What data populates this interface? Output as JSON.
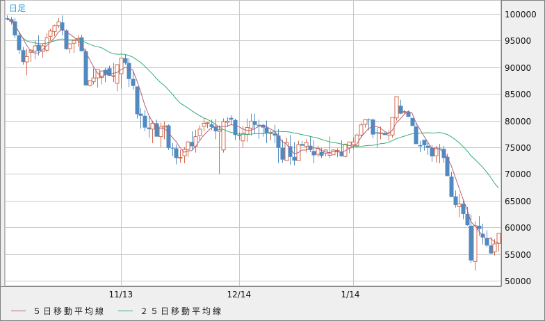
{
  "header": {
    "period_label": "日足"
  },
  "legend": {
    "items": [
      {
        "label": "５日移動平均線",
        "color": "#b0607f"
      },
      {
        "label": "２５日移動平均線",
        "color": "#2fae73"
      }
    ]
  },
  "colors": {
    "up": "#d06a4c",
    "down": "#4f8ac0",
    "grid": "#c8c8c8",
    "axis_bg": "#efefef",
    "title": "#2aa6d6"
  },
  "chart_data": {
    "type": "candlestick",
    "title": "日足",
    "xlabel": "",
    "ylabel": "",
    "ylim": [
      50000,
      100000
    ],
    "y_ticks": [
      100000,
      95000,
      90000,
      85000,
      80000,
      75000,
      70000,
      65000,
      60000,
      55000,
      50000
    ],
    "x_ticks": [
      {
        "label": "11/13",
        "index": 29
      },
      {
        "label": "12/14",
        "index": 59
      },
      {
        "label": "1/14",
        "index": 88
      }
    ],
    "grid": true,
    "legend_position": "bottom",
    "series_ma": [
      {
        "name": "５日移動平均線",
        "period": 5
      },
      {
        "name": "２５日移動平均線",
        "period": 25
      }
    ],
    "candles": [
      [
        99200,
        99700,
        98800,
        99000
      ],
      [
        99000,
        99400,
        98000,
        98500
      ],
      [
        98600,
        99200,
        95500,
        96000
      ],
      [
        96000,
        96600,
        92500,
        93200
      ],
      [
        93200,
        93800,
        90500,
        91000
      ],
      [
        91000,
        93500,
        88500,
        92000
      ],
      [
        92800,
        93400,
        91000,
        93200
      ],
      [
        93000,
        95000,
        91500,
        94000
      ],
      [
        94200,
        96000,
        92200,
        93100
      ],
      [
        93000,
        94500,
        91800,
        94000
      ],
      [
        93200,
        96400,
        92800,
        95500
      ],
      [
        95800,
        97200,
        95000,
        96800
      ],
      [
        96700,
        98000,
        95800,
        97800
      ],
      [
        97800,
        99200,
        97400,
        98500
      ],
      [
        98400,
        99700,
        96000,
        96900
      ],
      [
        96900,
        97100,
        93300,
        93400
      ],
      [
        93500,
        94500,
        92600,
        94400
      ],
      [
        94500,
        95200,
        92700,
        95000
      ],
      [
        95200,
        96000,
        93900,
        95400
      ],
      [
        95600,
        96100,
        93200,
        93000
      ],
      [
        93000,
        93500,
        86700,
        86600
      ],
      [
        86600,
        87600,
        86400,
        87500
      ],
      [
        87300,
        89800,
        86800,
        88000
      ],
      [
        88000,
        88600,
        86200,
        89600
      ],
      [
        88100,
        89400,
        86800,
        89300
      ],
      [
        89500,
        89900,
        87200,
        88600
      ],
      [
        89800,
        90300,
        88800,
        88400
      ],
      [
        88400,
        90800,
        87200,
        88400
      ],
      [
        87000,
        90200,
        85500,
        90500
      ],
      [
        88800,
        91000,
        86000,
        91700
      ],
      [
        91700,
        92400,
        90500,
        90800
      ],
      [
        90800,
        91700,
        86300,
        87800
      ],
      [
        87800,
        89400,
        85800,
        86500
      ],
      [
        86400,
        85600,
        80400,
        81200
      ],
      [
        81300,
        82400,
        78500,
        80900
      ],
      [
        80900,
        82000,
        78000,
        78700
      ],
      [
        78700,
        80900,
        76800,
        78400
      ],
      [
        78400,
        80000,
        75800,
        79500
      ],
      [
        79500,
        80200,
        77200,
        77000
      ],
      [
        77000,
        79600,
        75000,
        78800
      ],
      [
        78800,
        79800,
        76500,
        79000
      ],
      [
        79100,
        79300,
        74500,
        74900
      ],
      [
        74900,
        75800,
        73300,
        74800
      ],
      [
        74800,
        75500,
        71800,
        73000
      ],
      [
        73000,
        74500,
        72100,
        73100
      ],
      [
        73400,
        75000,
        72000,
        74600
      ],
      [
        74600,
        76200,
        73200,
        76000
      ],
      [
        76000,
        78000,
        74600,
        75200
      ],
      [
        75200,
        78300,
        74000,
        77000
      ],
      [
        77200,
        79100,
        76300,
        78400
      ],
      [
        78900,
        80500,
        78000,
        79500
      ],
      [
        79500,
        79700,
        78600,
        79600
      ],
      [
        79300,
        80200,
        78200,
        78800
      ],
      [
        78900,
        80300,
        76500,
        78000
      ],
      [
        78000,
        79100,
        70000,
        78300
      ],
      [
        74500,
        80400,
        74000,
        79800
      ],
      [
        79700,
        80600,
        78800,
        79900
      ],
      [
        80500,
        81000,
        79200,
        80200
      ],
      [
        80100,
        80400,
        76300,
        77300
      ],
      [
        77300,
        77800,
        76400,
        77100
      ],
      [
        76200,
        79000,
        75000,
        77600
      ],
      [
        77400,
        80400,
        76000,
        78700
      ],
      [
        78600,
        81300,
        77200,
        79900
      ],
      [
        79900,
        81300,
        77500,
        79200
      ],
      [
        79200,
        80200,
        76600,
        79000
      ],
      [
        79200,
        79400,
        77000,
        78700
      ],
      [
        78700,
        80000,
        75800,
        77600
      ],
      [
        77600,
        78200,
        76300,
        77700
      ],
      [
        77600,
        79200,
        75800,
        77200
      ],
      [
        77200,
        78400,
        72000,
        74900
      ],
      [
        74900,
        76400,
        72100,
        72700
      ],
      [
        72500,
        76800,
        72800,
        75900
      ],
      [
        75200,
        77300,
        71700,
        73200
      ],
      [
        73200,
        76000,
        71600,
        72500
      ],
      [
        72500,
        76200,
        72800,
        75500
      ],
      [
        75600,
        76200,
        75400,
        75300
      ],
      [
        75200,
        76500,
        74000,
        75900
      ],
      [
        75300,
        77000,
        74100,
        74500
      ],
      [
        74300,
        76300,
        72000,
        73500
      ],
      [
        73700,
        75300,
        73200,
        74800
      ],
      [
        74100,
        74900,
        73000,
        73400
      ],
      [
        73900,
        74600,
        73300,
        74500
      ],
      [
        73500,
        77000,
        73000,
        73800
      ],
      [
        73600,
        74600,
        73700,
        74500
      ],
      [
        74300,
        74800,
        73200,
        74400
      ],
      [
        74200,
        76300,
        73700,
        73300
      ],
      [
        73300,
        75400,
        73100,
        75600
      ],
      [
        74900,
        75800,
        73900,
        76000
      ],
      [
        75500,
        76800,
        74700,
        76000
      ],
      [
        75300,
        77600,
        74900,
        77300
      ],
      [
        77300,
        79600,
        77000,
        79200
      ],
      [
        79300,
        80300,
        78700,
        80200
      ],
      [
        80200,
        80400,
        78200,
        80100
      ],
      [
        80200,
        80400,
        76700,
        77400
      ],
      [
        77800,
        78700,
        74900,
        77600
      ],
      [
        77600,
        78900,
        76500,
        77700
      ],
      [
        77700,
        77800,
        77300,
        77300
      ],
      [
        77300,
        78200,
        76200,
        77700
      ],
      [
        77300,
        80600,
        76800,
        80600
      ],
      [
        80500,
        84100,
        80000,
        84500
      ],
      [
        82800,
        83900,
        81200,
        81300
      ],
      [
        81600,
        82000,
        81300,
        81700
      ],
      [
        81600,
        81900,
        80800,
        80700
      ],
      [
        80500,
        80500,
        79000,
        79000
      ],
      [
        78900,
        79600,
        76200,
        75600
      ],
      [
        75400,
        76200,
        74100,
        75200
      ],
      [
        76400,
        75900,
        74400,
        75400
      ],
      [
        75300,
        76000,
        73600,
        74900
      ],
      [
        74900,
        75400,
        72300,
        73300
      ],
      [
        73400,
        75300,
        72100,
        74900
      ],
      [
        74800,
        75600,
        72000,
        74700
      ],
      [
        74700,
        75300,
        72100,
        73000
      ],
      [
        73200,
        73800,
        69700,
        69600
      ],
      [
        69500,
        70400,
        65800,
        65700
      ],
      [
        65800,
        66900,
        63700,
        64200
      ],
      [
        63900,
        66300,
        61900,
        64400
      ],
      [
        64400,
        65000,
        61500,
        62500
      ],
      [
        62500,
        63800,
        60300,
        60400
      ],
      [
        60300,
        62400,
        53300,
        53800
      ],
      [
        53600,
        61100,
        51900,
        60300
      ],
      [
        60300,
        62100,
        58400,
        59700
      ],
      [
        58800,
        60700,
        56800,
        58100
      ],
      [
        58000,
        59400,
        56300,
        56600
      ],
      [
        56600,
        58200,
        55000,
        55100
      ],
      [
        55400,
        57800,
        54700,
        56900
      ],
      [
        57000,
        58800,
        55500,
        58900
      ]
    ]
  }
}
